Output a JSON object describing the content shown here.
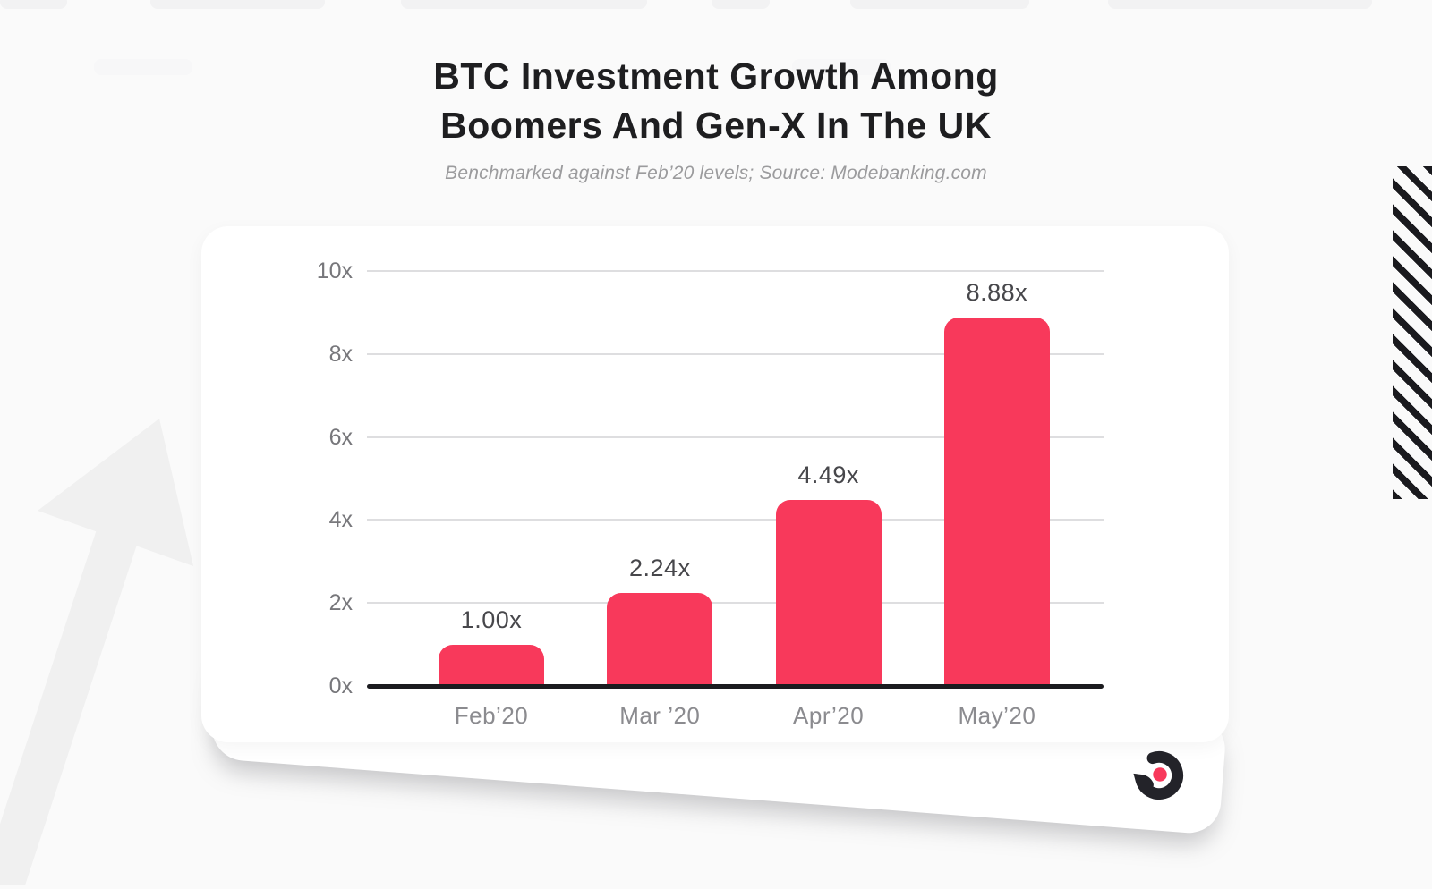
{
  "header": {
    "title_line1": "BTC Investment Growth Among",
    "title_line2": "Boomers And Gen-X In The UK",
    "subtitle": "Benchmarked against Feb’20 levels; Source: Modebanking.com"
  },
  "chart_data": {
    "type": "bar",
    "title": "BTC Investment Growth Among Boomers And Gen-X In The UK",
    "subtitle": "Benchmarked against Feb'20 levels; Source: Modebanking.com",
    "categories": [
      "Feb’20",
      "Mar ’20",
      "Apr’20",
      "May’20"
    ],
    "values": [
      1.0,
      2.24,
      4.49,
      8.88
    ],
    "value_labels": [
      "1.00x",
      "2.24x",
      "4.49x",
      "8.88x"
    ],
    "y_ticks": [
      {
        "value": 0,
        "label": "0x"
      },
      {
        "value": 2,
        "label": "2x"
      },
      {
        "value": 4,
        "label": "4x"
      },
      {
        "value": 6,
        "label": "6x"
      },
      {
        "value": 8,
        "label": "8x"
      },
      {
        "value": 10,
        "label": "10x"
      }
    ],
    "ylim": [
      0,
      10
    ],
    "xlabel": "",
    "ylabel": "",
    "grid": "horizontal",
    "legend": null,
    "bar_color": "#F8395B",
    "axis_color": "#1B1B1F",
    "gridline_color": "#DEDEE0"
  },
  "logo": {
    "name": "mode-logo",
    "ring_color": "#232329",
    "dot_color": "#F8395B"
  },
  "decor": {
    "stripes_color": "#1A1A1E",
    "watermark_color": "#F0F0F0"
  }
}
